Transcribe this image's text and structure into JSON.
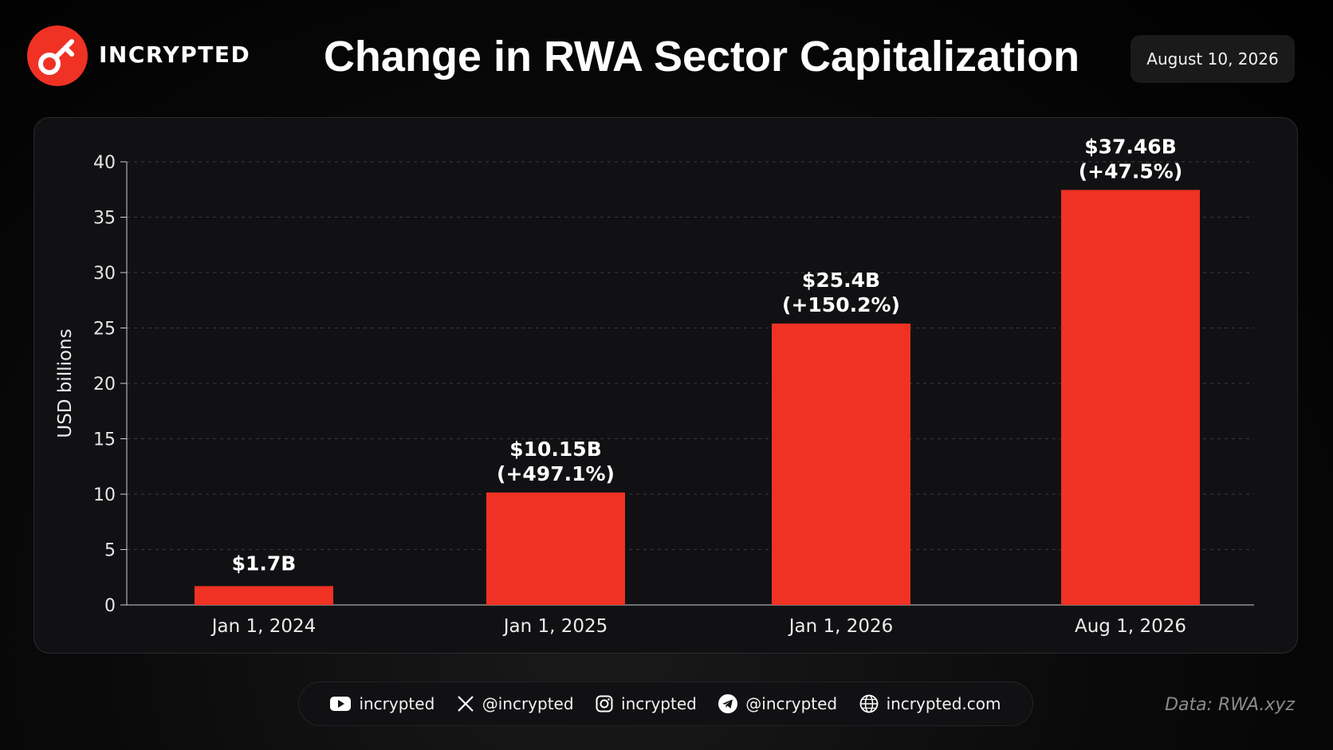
{
  "brand": {
    "name": "INCRYPTED",
    "logo_icon": "key-icon",
    "accent_color": "#ef3224"
  },
  "header": {
    "title": "Change in RWA Sector Capitalization",
    "date": "August 10, 2026"
  },
  "chart_data": {
    "type": "bar",
    "title": "Change in RWA Sector Capitalization",
    "ylabel": "USD billions",
    "xlabel": "",
    "categories": [
      "Jan 1, 2024",
      "Jan 1, 2025",
      "Jan 1, 2026",
      "Aug 1, 2026"
    ],
    "values": [
      1.7,
      10.15,
      25.4,
      37.46
    ],
    "value_labels": [
      "$1.7B",
      "$10.15B",
      "$25.4B",
      "$37.46B"
    ],
    "change_labels": [
      "",
      "(+497.1%)",
      "(+150.2%)",
      "(+47.5%)"
    ],
    "ylim": [
      0,
      40
    ],
    "yticks": [
      0,
      5,
      10,
      15,
      20,
      25,
      30,
      35,
      40
    ],
    "grid": true,
    "bar_color": "#ef3224"
  },
  "footer": {
    "socials": [
      {
        "icon": "youtube-icon",
        "label": "incrypted"
      },
      {
        "icon": "x-icon",
        "label": "@incrypted"
      },
      {
        "icon": "instagram-icon",
        "label": "incrypted"
      },
      {
        "icon": "telegram-icon",
        "label": "@incrypted"
      },
      {
        "icon": "globe-icon",
        "label": "incrypted.com"
      }
    ],
    "source": "Data: RWA.xyz"
  }
}
